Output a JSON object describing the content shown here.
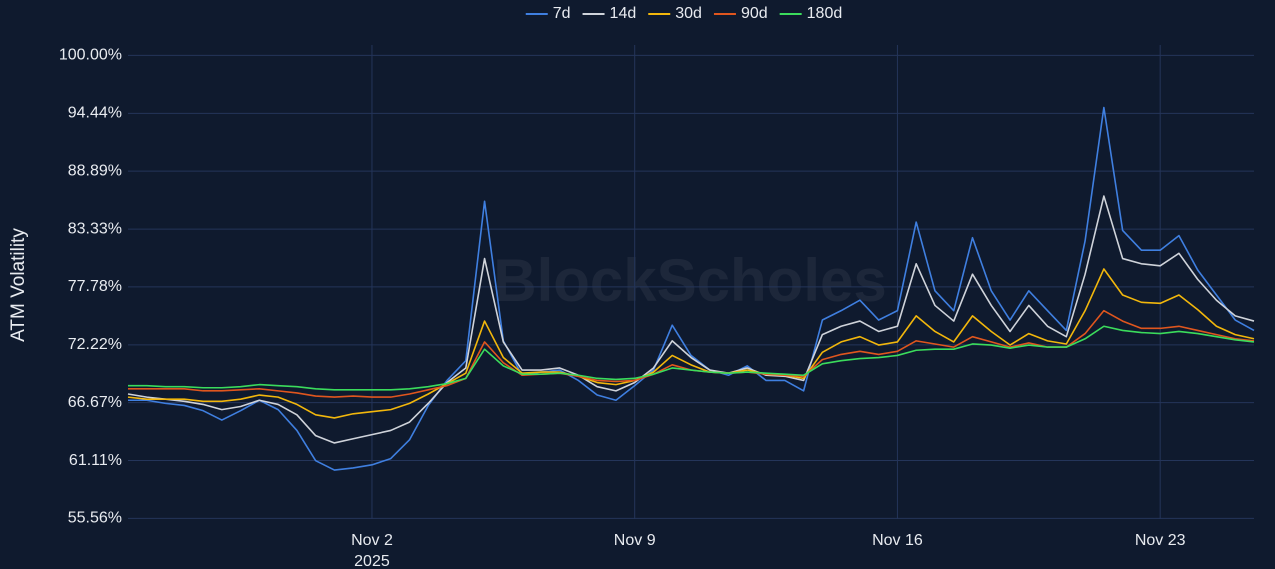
{
  "chart_data": {
    "type": "line",
    "y_label": "ATM Volatility",
    "watermark": "BlockScholes",
    "x_year_label": "2025",
    "x": [
      "2025-10-26 12:00",
      "2025-10-27 00:00",
      "2025-10-27 12:00",
      "2025-10-28 00:00",
      "2025-10-28 12:00",
      "2025-10-29 00:00",
      "2025-10-29 12:00",
      "2025-10-30 00:00",
      "2025-10-30 12:00",
      "2025-10-31 00:00",
      "2025-10-31 12:00",
      "2025-11-01 00:00",
      "2025-11-01 12:00",
      "2025-11-02 00:00",
      "2025-11-02 12:00",
      "2025-11-03 00:00",
      "2025-11-03 12:00",
      "2025-11-04 00:00",
      "2025-11-04 12:00",
      "2025-11-05 00:00",
      "2025-11-05 12:00",
      "2025-11-06 00:00",
      "2025-11-06 12:00",
      "2025-11-07 00:00",
      "2025-11-07 12:00",
      "2025-11-08 00:00",
      "2025-11-08 12:00",
      "2025-11-09 00:00",
      "2025-11-09 12:00",
      "2025-11-10 00:00",
      "2025-11-10 12:00",
      "2025-11-11 00:00",
      "2025-11-11 12:00",
      "2025-11-12 00:00",
      "2025-11-12 12:00",
      "2025-11-13 00:00",
      "2025-11-13 12:00",
      "2025-11-14 00:00",
      "2025-11-14 12:00",
      "2025-11-15 00:00",
      "2025-11-15 12:00",
      "2025-11-16 00:00",
      "2025-11-16 12:00",
      "2025-11-17 00:00",
      "2025-11-17 12:00",
      "2025-11-18 00:00",
      "2025-11-18 12:00",
      "2025-11-19 00:00",
      "2025-11-19 12:00",
      "2025-11-20 00:00",
      "2025-11-20 12:00",
      "2025-11-21 00:00",
      "2025-11-21 12:00",
      "2025-11-22 00:00",
      "2025-11-22 12:00",
      "2025-11-23 00:00",
      "2025-11-23 12:00",
      "2025-11-24 00:00",
      "2025-11-24 12:00",
      "2025-11-25 00:00",
      "2025-11-25 12:00"
    ],
    "xlim": [
      "2025-10-26 12:00",
      "2025-11-25 12:00"
    ],
    "xticks": [
      {
        "value": "2025-11-02 00:00",
        "label": "Nov 2"
      },
      {
        "value": "2025-11-09 00:00",
        "label": "Nov 9"
      },
      {
        "value": "2025-11-16 00:00",
        "label": "Nov 16"
      },
      {
        "value": "2025-11-23 00:00",
        "label": "Nov 23"
      }
    ],
    "ylim": [
      55.5,
      101
    ],
    "yticks": [
      {
        "value": 55.56,
        "label": "55.56%"
      },
      {
        "value": 61.11,
        "label": "61.11%"
      },
      {
        "value": 66.67,
        "label": "66.67%"
      },
      {
        "value": 72.22,
        "label": "72.22%"
      },
      {
        "value": 77.78,
        "label": "77.78%"
      },
      {
        "value": 83.33,
        "label": "83.33%"
      },
      {
        "value": 88.89,
        "label": "88.89%"
      },
      {
        "value": 94.44,
        "label": "94.44%"
      },
      {
        "value": 100,
        "label": "100.00%"
      }
    ],
    "grid": true,
    "legend": "top",
    "series": [
      {
        "name": "7d",
        "color": "#3f7fe0",
        "values": [
          66.9,
          66.9,
          66.6,
          66.4,
          65.9,
          65.0,
          65.9,
          66.9,
          66.0,
          64.0,
          61.1,
          60.2,
          60.4,
          60.7,
          61.3,
          63.1,
          66.4,
          68.8,
          70.7,
          86.0,
          72.6,
          69.3,
          69.6,
          69.8,
          68.8,
          67.4,
          66.9,
          68.3,
          69.8,
          74.1,
          71.2,
          69.8,
          69.3,
          70.2,
          68.8,
          68.8,
          67.8,
          74.6,
          75.5,
          76.5,
          74.6,
          75.5,
          84.0,
          77.4,
          75.5,
          82.5,
          77.4,
          74.6,
          77.4,
          75.5,
          73.6,
          82.2,
          95.0,
          83.2,
          81.3,
          81.3,
          82.7,
          79.4,
          77.0,
          74.6,
          73.6
        ]
      },
      {
        "name": "14d",
        "color": "#cfd3da",
        "values": [
          67.5,
          67.2,
          67.0,
          66.8,
          66.5,
          66.0,
          66.3,
          66.9,
          66.5,
          65.5,
          63.5,
          62.8,
          63.2,
          63.6,
          64.0,
          64.8,
          66.6,
          68.6,
          70.0,
          80.5,
          72.5,
          69.8,
          69.8,
          70.0,
          69.3,
          68.2,
          67.8,
          68.6,
          70.0,
          72.6,
          71.0,
          69.8,
          69.5,
          70.0,
          69.3,
          69.2,
          68.8,
          73.2,
          74.0,
          74.5,
          73.5,
          74.0,
          80.0,
          76.0,
          74.5,
          79.0,
          76.0,
          73.5,
          76.0,
          74.0,
          73.0,
          79.0,
          86.5,
          80.5,
          80.0,
          79.8,
          81.0,
          78.5,
          76.5,
          75.0,
          74.5
        ]
      },
      {
        "name": "30d",
        "color": "#f2b70c",
        "values": [
          67.2,
          67.0,
          67.0,
          67.0,
          66.8,
          66.8,
          67.0,
          67.4,
          67.2,
          66.5,
          65.5,
          65.2,
          65.6,
          65.8,
          66.0,
          66.6,
          67.5,
          68.5,
          69.5,
          74.5,
          71.0,
          69.5,
          69.6,
          69.6,
          69.2,
          68.6,
          68.4,
          68.8,
          69.6,
          71.2,
          70.3,
          69.6,
          69.5,
          69.8,
          69.4,
          69.3,
          69.0,
          71.5,
          72.5,
          73.0,
          72.2,
          72.5,
          75.0,
          73.5,
          72.5,
          75.0,
          73.5,
          72.2,
          73.3,
          72.6,
          72.3,
          75.5,
          79.5,
          77.0,
          76.3,
          76.2,
          77.0,
          75.6,
          74.0,
          73.2,
          72.8
        ]
      },
      {
        "name": "90d",
        "color": "#e0561e",
        "values": [
          68.0,
          68.0,
          68.0,
          68.0,
          67.8,
          67.8,
          67.9,
          68.0,
          67.8,
          67.6,
          67.3,
          67.2,
          67.3,
          67.2,
          67.2,
          67.5,
          67.9,
          68.3,
          69.0,
          72.5,
          70.5,
          69.3,
          69.4,
          69.5,
          69.2,
          68.8,
          68.7,
          68.8,
          69.4,
          70.3,
          69.8,
          69.6,
          69.5,
          69.6,
          69.4,
          69.3,
          69.2,
          70.8,
          71.3,
          71.6,
          71.3,
          71.6,
          72.6,
          72.3,
          72.0,
          73.0,
          72.5,
          72.0,
          72.4,
          72.0,
          72.0,
          73.3,
          75.5,
          74.5,
          73.8,
          73.8,
          74.0,
          73.6,
          73.2,
          72.8,
          72.6
        ]
      },
      {
        "name": "180d",
        "color": "#3bdc5c",
        "values": [
          68.3,
          68.3,
          68.2,
          68.2,
          68.1,
          68.1,
          68.2,
          68.4,
          68.3,
          68.2,
          68.0,
          67.9,
          67.9,
          67.9,
          67.9,
          68.0,
          68.2,
          68.5,
          69.0,
          71.8,
          70.2,
          69.4,
          69.4,
          69.5,
          69.3,
          69.0,
          68.9,
          69.0,
          69.4,
          70.0,
          69.8,
          69.6,
          69.5,
          69.6,
          69.5,
          69.4,
          69.3,
          70.4,
          70.7,
          70.9,
          71.0,
          71.2,
          71.7,
          71.8,
          71.8,
          72.3,
          72.2,
          71.9,
          72.2,
          72.0,
          72.0,
          72.8,
          74.0,
          73.6,
          73.4,
          73.3,
          73.5,
          73.3,
          73.0,
          72.7,
          72.5
        ]
      }
    ]
  }
}
